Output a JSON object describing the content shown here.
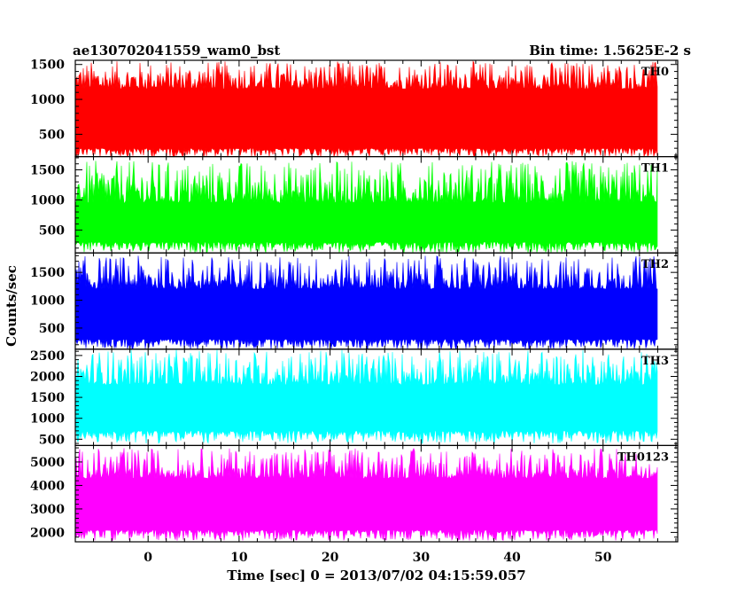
{
  "header": {
    "left_title": "ae130702041559_wam0_bst",
    "right_title": "Bin time: 1.5625E-2 s"
  },
  "chart_data": {
    "type": "line",
    "xlabel": "Time [sec] 0 = 2013/07/02 04:15:59.057",
    "ylabel": "Counts/sec",
    "xlim": [
      -8,
      58.2
    ],
    "x_data_range": [
      -8,
      56
    ],
    "x_ticks": [
      0,
      10,
      20,
      30,
      40,
      50
    ],
    "grid": false,
    "panels": [
      {
        "name": "TH0",
        "color": "#ff0000",
        "ylim": [
          180,
          1560
        ],
        "y_ticks": [
          500,
          1000,
          1500
        ],
        "band": [
          300,
          1150
        ],
        "range": [
          170,
          1550
        ],
        "mean": 720
      },
      {
        "name": "TH1",
        "color": "#00ff00",
        "ylim": [
          120,
          1720
        ],
        "y_ticks": [
          500,
          1000,
          1500
        ],
        "band": [
          300,
          950
        ],
        "range": [
          120,
          1650
        ],
        "mean": 650
      },
      {
        "name": "TH2",
        "color": "#0000ff",
        "ylim": [
          120,
          1850
        ],
        "y_ticks": [
          500,
          1000,
          1500
        ],
        "band": [
          300,
          1200
        ],
        "range": [
          120,
          1800
        ],
        "mean": 750
      },
      {
        "name": "TH3",
        "color": "#00ffff",
        "ylim": [
          350,
          2650
        ],
        "y_ticks": [
          500,
          1000,
          1500,
          2000,
          2500
        ],
        "band": [
          700,
          1800
        ],
        "range": [
          400,
          2650
        ],
        "mean": 1280
      },
      {
        "name": "TH0123",
        "color": "#ff00ff",
        "ylim": [
          1600,
          5700
        ],
        "y_ticks": [
          2000,
          3000,
          4000,
          5000
        ],
        "band": [
          2100,
          4300
        ],
        "range": [
          1650,
          5600
        ],
        "mean": 3200
      }
    ]
  }
}
